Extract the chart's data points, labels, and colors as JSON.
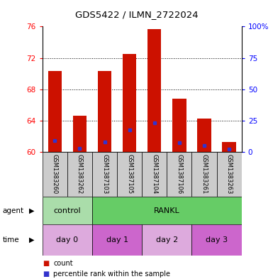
{
  "title": "GDS5422 / ILMN_2722024",
  "samples": [
    "GSM1383260",
    "GSM1383262",
    "GSM1387103",
    "GSM1387105",
    "GSM1387104",
    "GSM1387106",
    "GSM1383261",
    "GSM1383263"
  ],
  "counts": [
    70.3,
    64.6,
    70.3,
    72.5,
    75.7,
    66.8,
    64.3,
    61.3
  ],
  "percentile_ranks": [
    61.5,
    60.5,
    61.3,
    62.8,
    63.7,
    61.2,
    60.8,
    60.4
  ],
  "y_min": 60,
  "y_max": 76,
  "y_ticks": [
    60,
    64,
    68,
    72,
    76
  ],
  "y2_ticks": [
    0,
    25,
    50,
    75,
    100
  ],
  "bar_color": "#cc1100",
  "marker_color": "#3333cc",
  "agent_labels": [
    {
      "label": "control",
      "start": 0,
      "end": 2,
      "color": "#aaddaa"
    },
    {
      "label": "RANKL",
      "start": 2,
      "end": 8,
      "color": "#66cc66"
    }
  ],
  "time_labels": [
    {
      "label": "day 0",
      "start": 0,
      "end": 2,
      "color": "#ddaadd"
    },
    {
      "label": "day 1",
      "start": 2,
      "end": 4,
      "color": "#cc66cc"
    },
    {
      "label": "day 2",
      "start": 4,
      "end": 6,
      "color": "#ddaadd"
    },
    {
      "label": "day 3",
      "start": 6,
      "end": 8,
      "color": "#cc66cc"
    }
  ],
  "sample_bg_color": "#cccccc",
  "legend_count_color": "#cc1100",
  "legend_pct_color": "#3333cc",
  "fig_bg": "#ffffff"
}
